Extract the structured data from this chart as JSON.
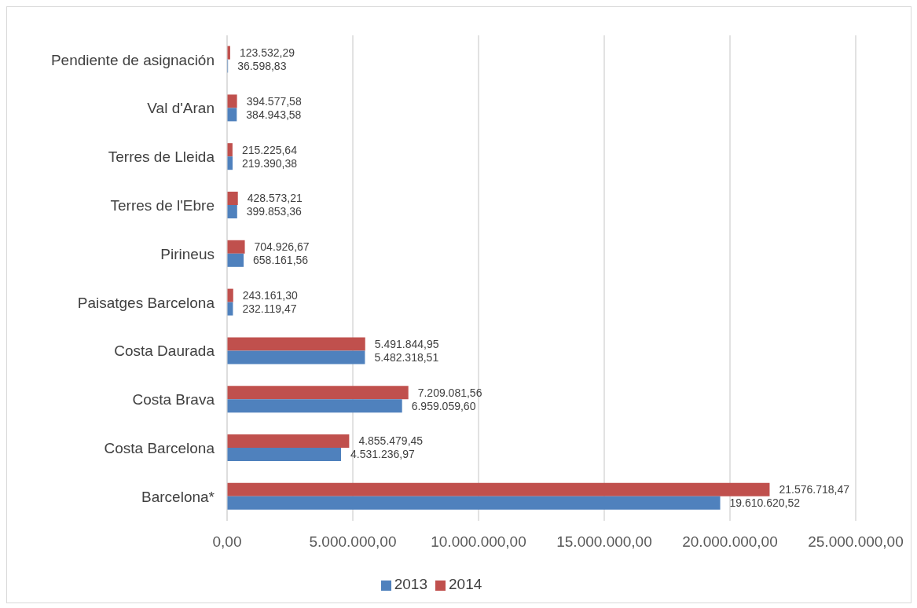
{
  "chart_data": {
    "type": "bar",
    "orientation": "horizontal",
    "categories": [
      "Pendiente de asignación",
      "Val d'Aran",
      "Terres de Lleida",
      "Terres de l'Ebre",
      "Pirineus",
      "Paisatges Barcelona",
      "Costa Daurada",
      "Costa Brava",
      "Costa Barcelona",
      "Barcelona*"
    ],
    "series": [
      {
        "name": "2014",
        "color": "#c0504d",
        "values": [
          123532.29,
          394577.58,
          215225.64,
          428573.21,
          704926.67,
          243161.3,
          5491844.95,
          7209081.56,
          4855479.45,
          21576718.47
        ],
        "value_labels": [
          "123.532,29",
          "394.577,58",
          "215.225,64",
          "428.573,21",
          "704.926,67",
          "243.161,30",
          "5.491.844,95",
          "7.209.081,56",
          "4.855.479,45",
          "21.576.718,47"
        ]
      },
      {
        "name": "2013",
        "color": "#4f81bd",
        "values": [
          36598.83,
          384943.58,
          219390.38,
          399853.36,
          658161.56,
          232119.47,
          5482318.51,
          6959059.6,
          4531236.97,
          19610620.52
        ],
        "value_labels": [
          "36.598,83",
          "384.943,58",
          "219.390,38",
          "399.853,36",
          "658.161,56",
          "232.119,47",
          "5.482.318,51",
          "6.959.059,60",
          "4.531.236,97",
          "19.610.620,52"
        ]
      }
    ],
    "xlim": [
      0,
      25000000
    ],
    "xticks": [
      {
        "value": 0,
        "label": "0,00"
      },
      {
        "value": 5000000,
        "label": "5.000.000,00"
      },
      {
        "value": 10000000,
        "label": "10.000.000,00"
      },
      {
        "value": 15000000,
        "label": "15.000.000,00"
      },
      {
        "value": 20000000,
        "label": "20.000.000,00"
      },
      {
        "value": 25000000,
        "label": "25.000.000,00"
      }
    ],
    "grid": "x",
    "legend": "bottom"
  }
}
